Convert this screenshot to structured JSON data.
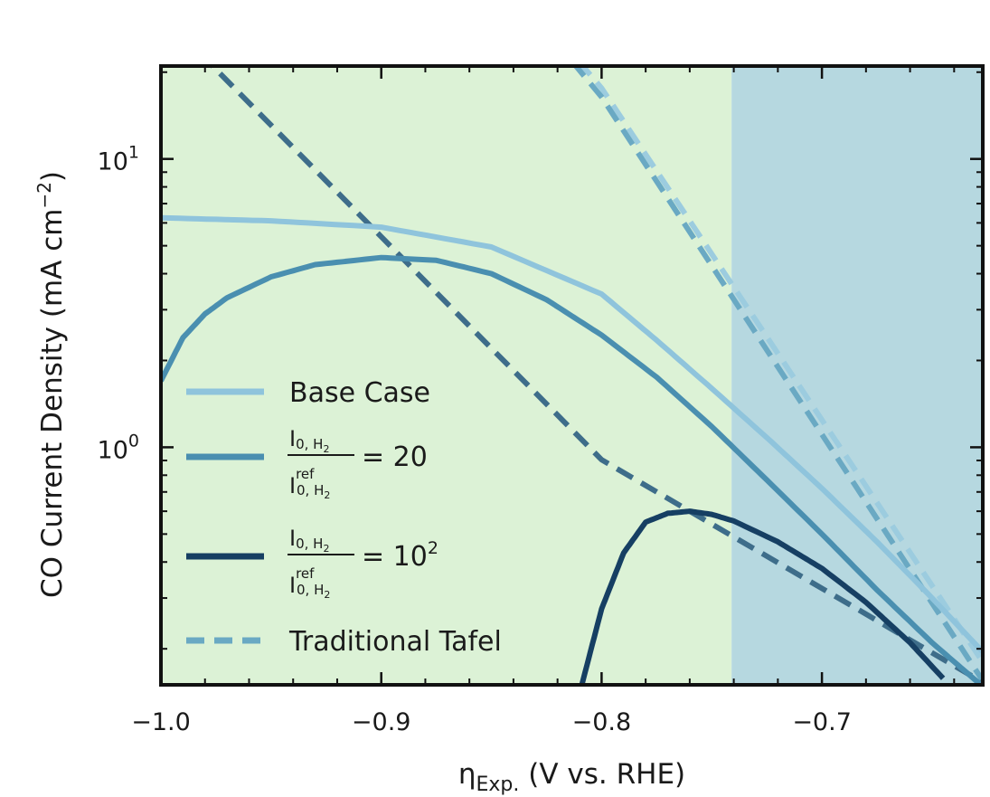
{
  "chart_data": {
    "type": "line",
    "xlabel": "η",
    "xlabel_sub": "Exp.",
    "xlabel_rest": " (V vs. RHE)",
    "ylabel": "CO Current Density (mA cm",
    "ylabel_sup": "−2",
    "ylabel_close": ")",
    "yscale": "log",
    "xlim": [
      -1.0,
      -0.627
    ],
    "ylim": [
      0.15,
      21
    ],
    "xticks": [
      {
        "value": -1.0,
        "label": "−1.0"
      },
      {
        "value": -0.9,
        "label": "−0.9"
      },
      {
        "value": -0.8,
        "label": "−0.8"
      },
      {
        "value": -0.7,
        "label": "−0.7"
      }
    ],
    "yticks": [
      {
        "value": 1,
        "base": "10",
        "exp": "0"
      },
      {
        "value": 10,
        "base": "10",
        "exp": "1"
      }
    ],
    "regions": [
      {
        "x0": -1.0,
        "x1": -0.741,
        "color": "#dcf2d6"
      },
      {
        "x0": -0.741,
        "x1": -0.627,
        "color": "#b6d8e0"
      }
    ],
    "grid": false,
    "legend_position": "center-left",
    "series": [
      {
        "key": "tafel_a",
        "style": "dashed",
        "color": "#9cccdf",
        "x": [
          -1.0,
          -0.8,
          -0.627
        ],
        "y": [
          1106,
          17.6,
          0.18
        ]
      },
      {
        "key": "tafel_b",
        "style": "dashed",
        "color": "#6aa9c3",
        "x": [
          -1.0,
          -0.8,
          -0.627
        ],
        "y": [
          1143,
          16.4,
          0.155
        ]
      },
      {
        "key": "tafel_c",
        "style": "dashed",
        "color": "#3e6d8a",
        "x": [
          -1.0,
          -0.8,
          -0.627
        ],
        "y": [
          31.9,
          0.905,
          0.153
        ]
      },
      {
        "name": "Base Case",
        "style": "solid",
        "color": "#8fc4dc",
        "x": [
          -1.0,
          -0.95,
          -0.9,
          -0.85,
          -0.8,
          -0.775,
          -0.75,
          -0.725,
          -0.7,
          -0.675,
          -0.65,
          -0.627
        ],
        "y": [
          6.25,
          6.1,
          5.8,
          4.95,
          3.4,
          2.35,
          1.6,
          1.08,
          0.72,
          0.47,
          0.3,
          0.195
        ]
      },
      {
        "name": "I0,H2 / I0,H2 ref = 20",
        "style": "solid",
        "color": "#4a8fb0",
        "x": [
          -1.0,
          -0.99,
          -0.98,
          -0.97,
          -0.95,
          -0.93,
          -0.9,
          -0.875,
          -0.85,
          -0.825,
          -0.8,
          -0.775,
          -0.75,
          -0.725,
          -0.7,
          -0.675,
          -0.65,
          -0.627
        ],
        "y": [
          1.7,
          2.4,
          2.9,
          3.3,
          3.9,
          4.3,
          4.55,
          4.45,
          4.0,
          3.25,
          2.45,
          1.75,
          1.18,
          0.77,
          0.5,
          0.32,
          0.21,
          0.148
        ]
      },
      {
        "name": "I0,H2 / I0,H2 ref = 10^2",
        "style": "solid",
        "color": "#163f63",
        "x": [
          -0.81,
          -0.8,
          -0.79,
          -0.78,
          -0.77,
          -0.76,
          -0.75,
          -0.74,
          -0.72,
          -0.7,
          -0.68,
          -0.66,
          -0.645
        ],
        "y": [
          0.14,
          0.275,
          0.43,
          0.55,
          0.59,
          0.6,
          0.585,
          0.555,
          0.47,
          0.38,
          0.29,
          0.21,
          0.158
        ]
      }
    ],
    "legend": [
      {
        "kind": "text",
        "label": "Base Case",
        "style": "solid",
        "color": "#8fc4dc"
      },
      {
        "kind": "fraction",
        "num": "I",
        "num_sub": "0, H",
        "num_sub2": "2",
        "den": "I",
        "den_sup": "ref",
        "den_sub": "0, H",
        "den_sub2": "2",
        "suffix": "= 20",
        "suffix_sup": "",
        "style": "solid",
        "color": "#4a8fb0"
      },
      {
        "kind": "fraction",
        "num": "I",
        "num_sub": "0, H",
        "num_sub2": "2",
        "den": "I",
        "den_sup": "ref",
        "den_sub": "0, H",
        "den_sub2": "2",
        "suffix": "= 10",
        "suffix_sup": "2",
        "style": "solid",
        "color": "#163f63"
      },
      {
        "kind": "text",
        "label": "Traditional Tafel",
        "style": "dashed",
        "color": "#6aa9c3"
      }
    ]
  }
}
